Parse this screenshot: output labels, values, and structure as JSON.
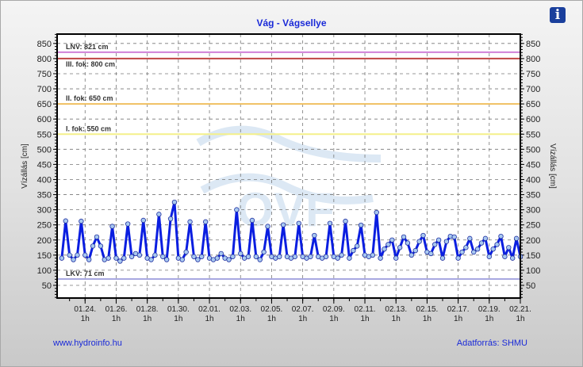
{
  "title": "Vág - Vágsellye",
  "info_icon": "info-icon",
  "footer": {
    "left": "www.hydroinfo.hu",
    "right": "Adatforrás: SHMU"
  },
  "watermark": "OVF",
  "chart_data": {
    "type": "line",
    "title": "Vág - Vágsellye",
    "ylabel": "Vízállás [cm]",
    "ylabel_right": "Vízállás [cm]",
    "ylim": [
      8,
      881
    ],
    "yticks": [
      50,
      100,
      150,
      200,
      250,
      300,
      350,
      400,
      450,
      500,
      550,
      600,
      650,
      700,
      750,
      800,
      850
    ],
    "xlim": [
      -1.8,
      28
    ],
    "x_unit": "days since 01.24. 1h",
    "xticks": [
      {
        "x": 0,
        "label": "01.24.",
        "sub": "1h"
      },
      {
        "x": 2,
        "label": "01.26.",
        "sub": "1h"
      },
      {
        "x": 4,
        "label": "01.28.",
        "sub": "1h"
      },
      {
        "x": 6,
        "label": "01.30.",
        "sub": "1h"
      },
      {
        "x": 8,
        "label": "02.01.",
        "sub": "1h"
      },
      {
        "x": 10,
        "label": "02.03.",
        "sub": "1h"
      },
      {
        "x": 12,
        "label": "02.05.",
        "sub": "1h"
      },
      {
        "x": 14,
        "label": "02.07.",
        "sub": "1h"
      },
      {
        "x": 16,
        "label": "02.09.",
        "sub": "1h"
      },
      {
        "x": 18,
        "label": "02.11.",
        "sub": "1h"
      },
      {
        "x": 20,
        "label": "02.13.",
        "sub": "1h"
      },
      {
        "x": 22,
        "label": "02.15.",
        "sub": "1h"
      },
      {
        "x": 24,
        "label": "02.17.",
        "sub": "1h"
      },
      {
        "x": 26,
        "label": "02.19.",
        "sub": "1h"
      },
      {
        "x": 28,
        "label": "02.21.",
        "sub": "1h"
      }
    ],
    "grid": true,
    "thresholds": [
      {
        "label": "LNV: 821 cm",
        "value": 821,
        "color": "#d080d8"
      },
      {
        "label": "III. fok: 800 cm",
        "value": 800,
        "color": "#c04444"
      },
      {
        "label": "II. fok: 650 cm",
        "value": 650,
        "color": "#f0c060"
      },
      {
        "label": "I. fok: 550 cm",
        "value": 550,
        "color": "#f4f08a"
      },
      {
        "label": "LKV: 71 cm",
        "value": 71,
        "color": "#a8a8e0"
      }
    ],
    "series": [
      {
        "name": "Vízállás",
        "color": "#0a1ee0",
        "x_start": -1.5,
        "x_step": 0.25,
        "values": [
          140,
          263,
          150,
          135,
          150,
          262,
          150,
          135,
          180,
          210,
          180,
          135,
          140,
          245,
          140,
          130,
          140,
          253,
          145,
          155,
          150,
          265,
          140,
          135,
          150,
          285,
          145,
          135,
          270,
          325,
          140,
          135,
          160,
          260,
          145,
          135,
          145,
          260,
          140,
          135,
          140,
          155,
          140,
          135,
          145,
          300,
          155,
          140,
          145,
          265,
          145,
          135,
          160,
          245,
          145,
          140,
          145,
          250,
          145,
          140,
          145,
          255,
          145,
          140,
          145,
          215,
          145,
          140,
          145,
          255,
          145,
          140,
          150,
          262,
          140,
          165,
          180,
          249,
          150,
          145,
          150,
          291,
          140,
          170,
          185,
          200,
          140,
          175,
          210,
          190,
          150,
          165,
          195,
          215,
          160,
          155,
          185,
          200,
          140,
          195,
          212,
          210,
          140,
          160,
          175,
          205,
          160,
          170,
          190,
          205,
          145,
          170,
          185,
          212,
          145,
          175,
          140,
          205,
          145
        ]
      }
    ]
  }
}
